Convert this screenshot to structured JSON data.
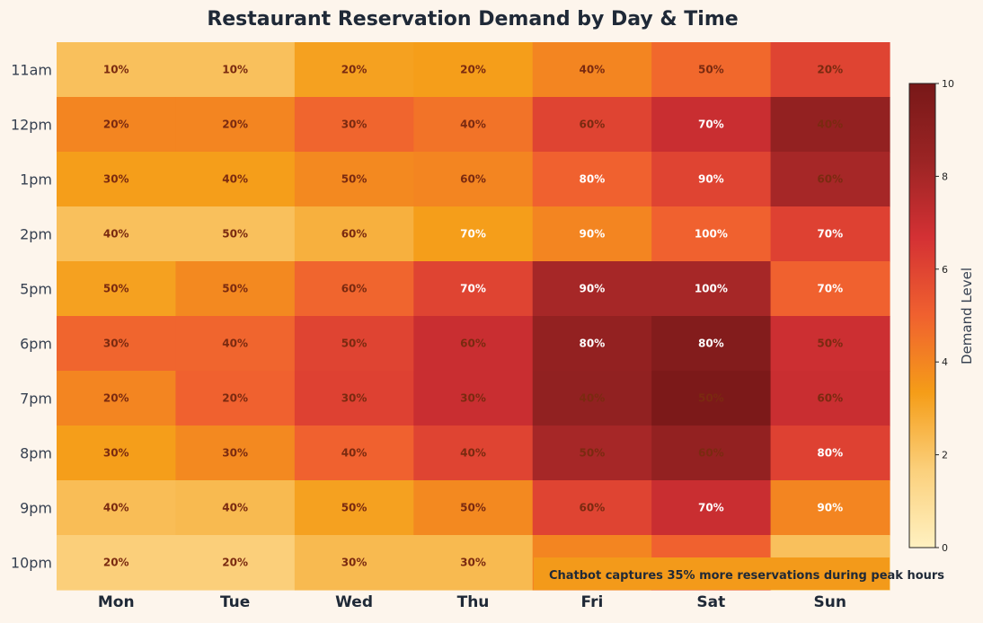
{
  "chart_data": {
    "type": "heatmap",
    "title": "Restaurant Reservation Demand by Day & Time",
    "columns": [
      "Mon",
      "Tue",
      "Wed",
      "Thu",
      "Fri",
      "Sat",
      "Sun"
    ],
    "rows": [
      "11am",
      "12pm",
      "1pm",
      "2pm",
      "5pm",
      "6pm",
      "7pm",
      "8pm",
      "9pm",
      "10pm"
    ],
    "values": [
      [
        2.2,
        2.2,
        3.2,
        3.3,
        4.0,
        4.8,
        6.0
      ],
      [
        4.0,
        4.0,
        4.9,
        4.5,
        6.0,
        7.0,
        8.7
      ],
      [
        3.3,
        3.3,
        3.9,
        4.0,
        5.0,
        6.0,
        8.0
      ],
      [
        2.2,
        2.2,
        2.7,
        3.3,
        4.0,
        5.0,
        6.1
      ],
      [
        3.2,
        3.9,
        4.9,
        6.0,
        8.0,
        8.0,
        5.0
      ],
      [
        4.9,
        4.9,
        6.0,
        7.0,
        8.7,
        9.5,
        6.9
      ],
      [
        4.0,
        5.0,
        6.1,
        7.0,
        8.8,
        9.8,
        7.0
      ],
      [
        3.3,
        3.9,
        5.0,
        6.0,
        8.0,
        8.7,
        6.1
      ],
      [
        2.3,
        2.4,
        3.2,
        3.9,
        6.0,
        7.0,
        4.0
      ],
      [
        1.7,
        1.7,
        2.4,
        2.4,
        4.0,
        5.0,
        2.2
      ]
    ],
    "cell_labels": [
      [
        "10%",
        "10%",
        "20%",
        "20%",
        "40%",
        "50%",
        "20%"
      ],
      [
        "20%",
        "20%",
        "30%",
        "40%",
        "60%",
        "70%",
        "40%"
      ],
      [
        "30%",
        "40%",
        "50%",
        "60%",
        "80%",
        "90%",
        "60%"
      ],
      [
        "40%",
        "50%",
        "60%",
        "70%",
        "90%",
        "100%",
        "70%"
      ],
      [
        "50%",
        "50%",
        "60%",
        "70%",
        "90%",
        "100%",
        "70%"
      ],
      [
        "30%",
        "40%",
        "50%",
        "60%",
        "80%",
        "80%",
        "50%"
      ],
      [
        "20%",
        "20%",
        "30%",
        "30%",
        "40%",
        "50%",
        "60%"
      ],
      [
        "30%",
        "30%",
        "40%",
        "40%",
        "50%",
        "60%",
        "80%"
      ],
      [
        "40%",
        "40%",
        "50%",
        "50%",
        "60%",
        "70%",
        "90%"
      ],
      [
        "20%",
        "20%",
        "30%",
        "30%",
        "",
        "",
        ""
      ]
    ],
    "label_colors": [
      [
        "dark",
        "dark",
        "dark",
        "dark",
        "dark",
        "dark",
        "dark"
      ],
      [
        "dark",
        "dark",
        "dark",
        "dark",
        "dark",
        "white",
        "dark"
      ],
      [
        "dark",
        "dark",
        "dark",
        "dark",
        "white",
        "white",
        "dark"
      ],
      [
        "dark",
        "dark",
        "dark",
        "white",
        "white",
        "white",
        "white"
      ],
      [
        "dark",
        "dark",
        "dark",
        "white",
        "white",
        "white",
        "white"
      ],
      [
        "dark",
        "dark",
        "dark",
        "dark",
        "white",
        "white",
        "dark"
      ],
      [
        "dark",
        "dark",
        "dark",
        "dark",
        "dark",
        "dark",
        "dark"
      ],
      [
        "dark",
        "dark",
        "dark",
        "dark",
        "dark",
        "dark",
        "white"
      ],
      [
        "dark",
        "dark",
        "dark",
        "dark",
        "dark",
        "white",
        "white"
      ],
      [
        "dark",
        "dark",
        "dark",
        "dark",
        "dark",
        "dark",
        "dark"
      ]
    ],
    "colorbar": {
      "label": "Demand Level",
      "range": [
        0,
        10
      ],
      "ticks": [
        "0",
        "2",
        "4",
        "6",
        "8",
        "10"
      ],
      "colormap": [
        "#fff1c1",
        "#fbd07c",
        "#f59d18",
        "#f0612f",
        "#d43134",
        "#9b2424",
        "#781818"
      ]
    },
    "annotation": "Chatbot captures 35% more reservations during peak hours",
    "colors": {
      "background": "#fdf5ec",
      "title": "#1f2937",
      "axis_text": "#374151",
      "label_dark": "#7a2a10",
      "label_white": "#ffffff",
      "annotation_bg": "#f39a1a",
      "annotation_text": "#1f2937"
    }
  }
}
